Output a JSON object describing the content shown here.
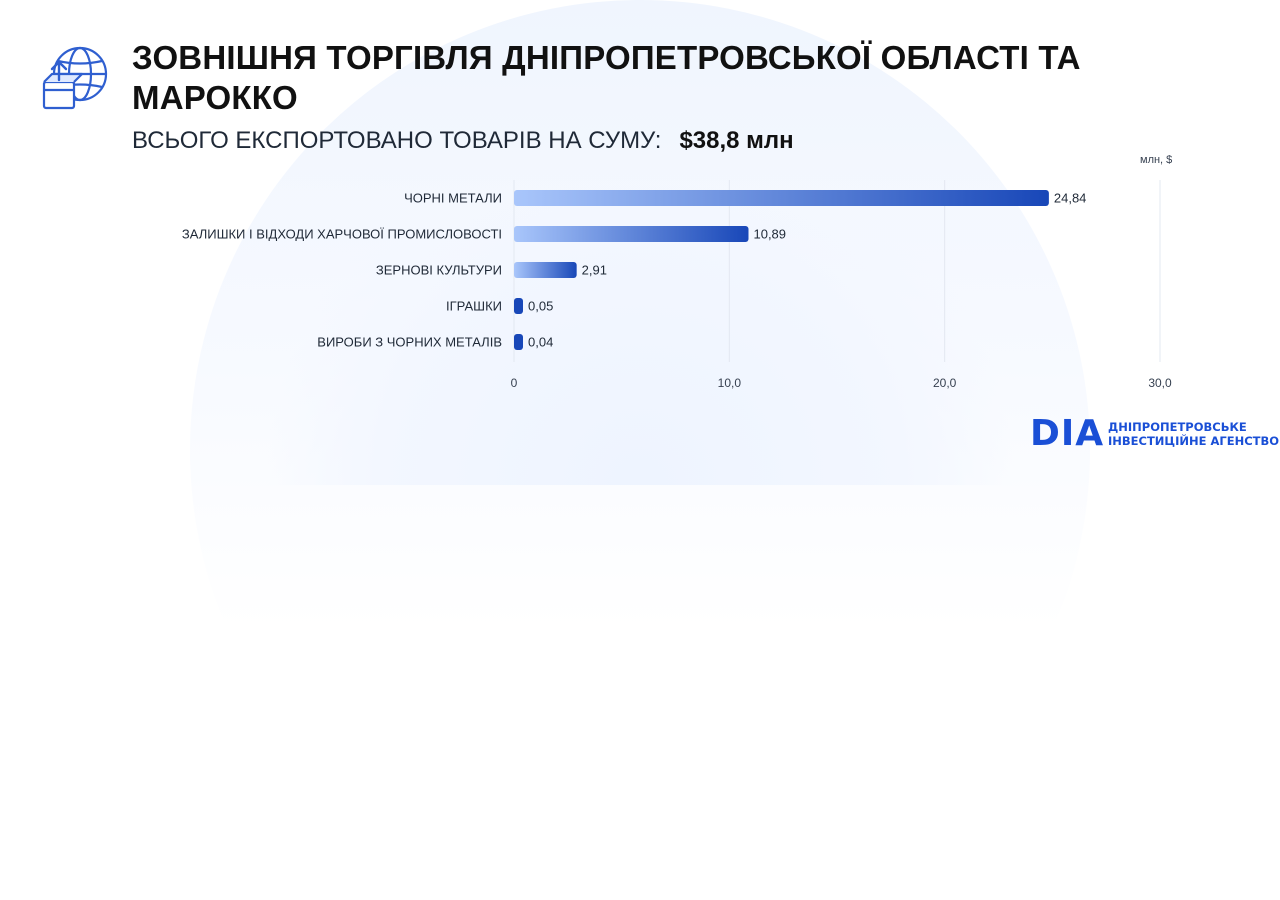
{
  "header": {
    "icon": "globe-export-box-icon",
    "title": "ЗОВНІШНЯ ТОРГІВЛЯ ДНІПРОПЕТРОВСЬКОЇ ОБЛАСТІ ТА МАРОККО",
    "subtitle_label": "ВСЬОГО ЕКСПОРТОВАНО ТОВАРІВ НА СУМУ:",
    "subtitle_amount": "$38,8 млн"
  },
  "chart_data": {
    "type": "bar",
    "orientation": "horizontal",
    "unit_label": "млн, $",
    "categories": [
      "ЧОРНІ МЕТАЛИ",
      "ЗАЛИШКИ І ВІДХОДИ ХАРЧОВОЇ ПРОМИСЛОВОСТІ",
      "ЗЕРНОВІ КУЛЬТУРИ",
      "ІГРАШКИ",
      "ВИРОБИ З ЧОРНИХ МЕТАЛІВ"
    ],
    "values": [
      24.84,
      10.89,
      2.91,
      0.05,
      0.04
    ],
    "value_labels": [
      "24,84",
      "10,89",
      "2,91",
      "0,05",
      "0,04"
    ],
    "xlim": [
      0,
      30
    ],
    "xticks": [
      0,
      10,
      20,
      30
    ],
    "xtick_labels": [
      "0",
      "10,0",
      "20,0",
      "30,0"
    ],
    "grid": true,
    "bar_color_start": "#a9c6fb",
    "bar_color_end": "#1847b8"
  },
  "logo": {
    "mark": "DIA",
    "line1": "ДНІПРОПЕТРОВСЬКЕ",
    "line2": "ІНВЕСТИЦІЙНЕ АГЕНСТВО",
    "color": "#1a4fd6"
  }
}
